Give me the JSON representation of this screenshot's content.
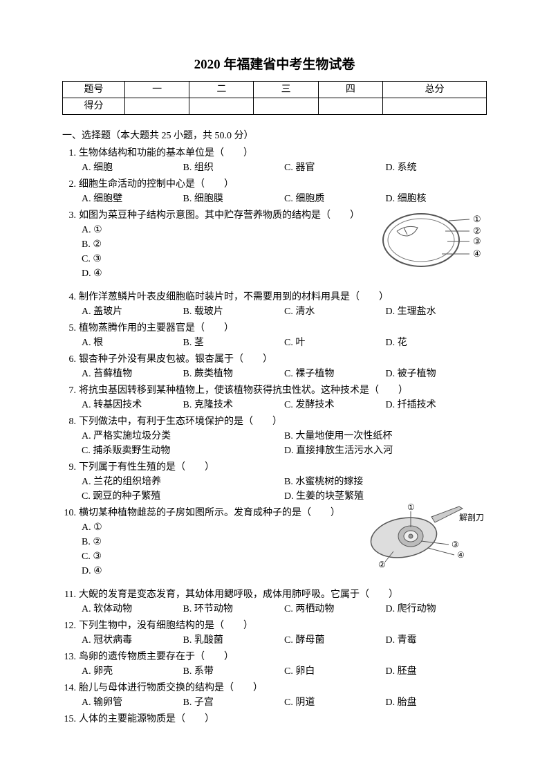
{
  "title": "2020 年福建省中考生物试卷",
  "scoreTable": {
    "headers": [
      "题号",
      "一",
      "二",
      "三",
      "四",
      "总分"
    ],
    "scoreLabel": "得分"
  },
  "section1": {
    "header": "一、选择题（本大题共 25 小题，共 50.0 分）"
  },
  "questions": [
    {
      "num": "1.",
      "text": "生物体结构和功能的基本单位是（　　）",
      "layout": "4col",
      "opts": [
        "A. 细胞",
        "B. 组织",
        "C. 器官",
        "D. 系统"
      ]
    },
    {
      "num": "2.",
      "text": "细胞生命活动的控制中心是（　　）",
      "layout": "4col",
      "opts": [
        "A. 细胞壁",
        "B. 细胞膜",
        "C. 细胞质",
        "D. 细胞核"
      ]
    },
    {
      "num": "3.",
      "text": "如图为菜豆种子结构示意图。其中贮存营养物质的结构是（　　）",
      "layout": "vert",
      "opts": [
        "A. ①",
        "B. ②",
        "C. ③",
        "D. ④"
      ],
      "diagram": "bean",
      "labels": [
        "①",
        "②",
        "③",
        "④"
      ]
    },
    {
      "num": "4.",
      "text": "制作洋葱鳞片叶表皮细胞临时装片时，不需要用到的材料用具是（　　）",
      "layout": "4col",
      "opts": [
        "A. 盖玻片",
        "B. 载玻片",
        "C. 清水",
        "D. 生理盐水"
      ]
    },
    {
      "num": "5.",
      "text": "植物蒸腾作用的主要器官是（　　）",
      "layout": "4col",
      "opts": [
        "A. 根",
        "B. 茎",
        "C. 叶",
        "D. 花"
      ]
    },
    {
      "num": "6.",
      "text": "银杏种子外没有果皮包被。银杏属于（　　）",
      "layout": "4col",
      "opts": [
        "A. 苔藓植物",
        "B. 蕨类植物",
        "C. 裸子植物",
        "D. 被子植物"
      ]
    },
    {
      "num": "7.",
      "text": "将抗虫基因转移到某种植物上，使该植物获得抗虫性状。这种技术是（　　）",
      "layout": "4col",
      "opts": [
        "A. 转基因技术",
        "B. 克隆技术",
        "C. 发酵技术",
        "D. 扦插技术"
      ]
    },
    {
      "num": "8.",
      "text": "下列做法中，有利于生态环境保护的是（　　）",
      "layout": "2col",
      "opts": [
        "A. 严格实施垃圾分类",
        "B. 大量地使用一次性纸杯",
        "C. 捕杀贩卖野生动物",
        "D. 直接排放生活污水入河"
      ]
    },
    {
      "num": "9.",
      "text": "下列属于有性生殖的是（　　）",
      "layout": "2col",
      "opts": [
        "A. 兰花的组织培养",
        "B. 水蜜桃树的嫁接",
        "C. 豌豆的种子繁殖",
        "D. 生姜的块茎繁殖"
      ]
    },
    {
      "num": "10.",
      "text": "横切某种植物雌蕊的子房如图所示。发育成种子的是（　　）",
      "layout": "vert",
      "opts": [
        "A. ①",
        "B. ②",
        "C. ③",
        "D. ④"
      ],
      "diagram": "ovary",
      "labels": [
        "①",
        "②",
        "③",
        "④"
      ],
      "knife": "解剖刀"
    },
    {
      "num": "11.",
      "text": "大鲵的发育是变态发育，其幼体用鳃呼吸，成体用肺呼吸。它属于（　　）",
      "layout": "4col",
      "opts": [
        "A. 软体动物",
        "B. 环节动物",
        "C. 两栖动物",
        "D. 爬行动物"
      ]
    },
    {
      "num": "12.",
      "text": "下列生物中，没有细胞结构的是（　　）",
      "layout": "4col",
      "opts": [
        "A. 冠状病毒",
        "B. 乳酸菌",
        "C. 酵母菌",
        "D. 青霉"
      ]
    },
    {
      "num": "13.",
      "text": "鸟卵的遗传物质主要存在于（　　）",
      "layout": "4col",
      "opts": [
        "A. 卵壳",
        "B. 系带",
        "C. 卵白",
        "D. 胚盘"
      ]
    },
    {
      "num": "14.",
      "text": "胎儿与母体进行物质交换的结构是（　　）",
      "layout": "4col",
      "opts": [
        "A. 输卵管",
        "B. 子宫",
        "C. 阴道",
        "D. 胎盘"
      ]
    },
    {
      "num": "15.",
      "text": "人体的主要能源物质是（　　）",
      "layout": "none",
      "opts": []
    }
  ]
}
